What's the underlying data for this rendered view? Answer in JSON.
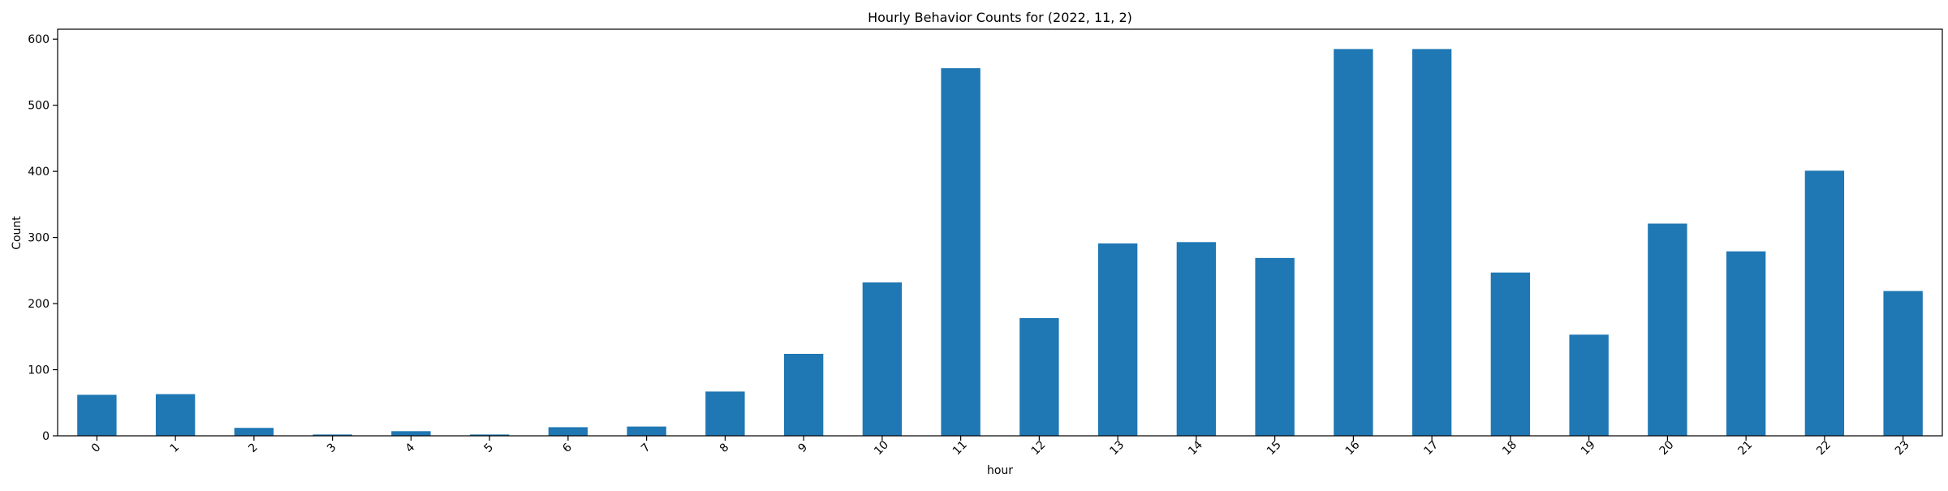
{
  "chart_data": {
    "type": "bar",
    "title": "Hourly Behavior Counts for (2022, 11, 2)",
    "xlabel": "hour",
    "ylabel": "Count",
    "ylim": [
      0,
      615
    ],
    "yticks": [
      0,
      100,
      200,
      300,
      400,
      500,
      600
    ],
    "categories": [
      "0",
      "1",
      "2",
      "3",
      "4",
      "5",
      "6",
      "7",
      "8",
      "9",
      "10",
      "11",
      "12",
      "13",
      "14",
      "15",
      "16",
      "17",
      "18",
      "19",
      "20",
      "21",
      "22",
      "23"
    ],
    "values": [
      62,
      63,
      12,
      2,
      7,
      2,
      13,
      14,
      67,
      124,
      232,
      556,
      178,
      291,
      293,
      269,
      585,
      585,
      247,
      153,
      321,
      279,
      401,
      219
    ],
    "bar_color": "#1f77b4",
    "grid": false,
    "legend": "none",
    "xtick_rotation": 45
  }
}
